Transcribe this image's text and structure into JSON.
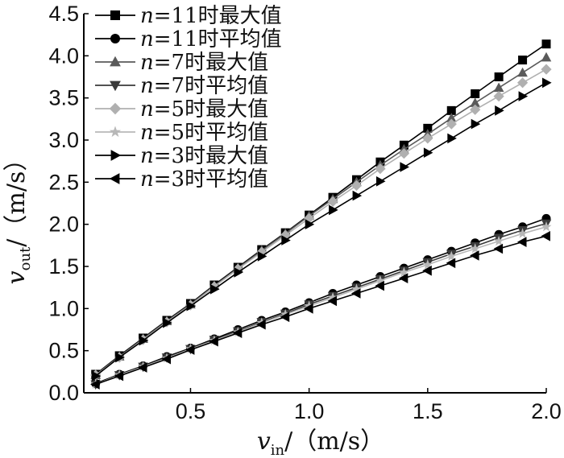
{
  "chart_data": {
    "type": "line",
    "xlabel": {
      "var": "v",
      "sub": "in",
      "unit": "/（m/s）"
    },
    "ylabel": {
      "var": "v",
      "sub": "out",
      "unit": "/（m/s）"
    },
    "xlim": [
      0.05,
      2.0
    ],
    "ylim": [
      0.0,
      4.5
    ],
    "xticks": [
      "0.5",
      "1.0",
      "1.5",
      "2.0"
    ],
    "yticks": [
      "0.0",
      "0.5",
      "1.0",
      "1.5",
      "2.0",
      "2.5",
      "3.0",
      "3.5",
      "4.0",
      "4.5"
    ],
    "grid": false,
    "legend_position": "top-left",
    "x": [
      0.1,
      0.2,
      0.3,
      0.4,
      0.5,
      0.6,
      0.7,
      0.8,
      0.9,
      1.0,
      1.1,
      1.2,
      1.3,
      1.4,
      1.5,
      1.6,
      1.7,
      1.8,
      1.9,
      2.0
    ],
    "series": [
      {
        "name": "n=11时最大值",
        "var": "n",
        "label": "=11时最大值",
        "marker": "square",
        "color": "#000000",
        "values": [
          0.22,
          0.44,
          0.65,
          0.86,
          1.06,
          1.28,
          1.49,
          1.7,
          1.9,
          2.11,
          2.32,
          2.53,
          2.74,
          2.94,
          3.14,
          3.35,
          3.55,
          3.75,
          3.95,
          4.14
        ]
      },
      {
        "name": "n=11时平均值",
        "var": "n",
        "label": "=11时平均值",
        "marker": "circle",
        "color": "#000000",
        "values": [
          0.11,
          0.22,
          0.32,
          0.43,
          0.53,
          0.64,
          0.75,
          0.86,
          0.96,
          1.07,
          1.18,
          1.28,
          1.38,
          1.48,
          1.58,
          1.68,
          1.78,
          1.88,
          1.97,
          2.07
        ]
      },
      {
        "name": "n=7时最大值",
        "var": "n",
        "label": "=7时最大值",
        "marker": "triangle-up",
        "color": "#5a5a5a",
        "values": [
          0.21,
          0.43,
          0.64,
          0.85,
          1.05,
          1.27,
          1.48,
          1.69,
          1.89,
          2.1,
          2.3,
          2.5,
          2.7,
          2.89,
          3.07,
          3.26,
          3.44,
          3.62,
          3.8,
          3.98
        ]
      },
      {
        "name": "n=7时平均值",
        "var": "n",
        "label": "=7时平均值",
        "marker": "triangle-down",
        "color": "#3a3a3a",
        "values": [
          0.1,
          0.21,
          0.31,
          0.42,
          0.52,
          0.63,
          0.73,
          0.84,
          0.94,
          1.05,
          1.15,
          1.25,
          1.35,
          1.45,
          1.55,
          1.65,
          1.74,
          1.84,
          1.93,
          2.01
        ]
      },
      {
        "name": "n=5时最大值",
        "var": "n",
        "label": "=5时最大值",
        "marker": "diamond",
        "color": "#b0b0b0",
        "values": [
          0.21,
          0.42,
          0.63,
          0.84,
          1.04,
          1.26,
          1.47,
          1.67,
          1.87,
          2.07,
          2.27,
          2.46,
          2.66,
          2.84,
          3.02,
          3.19,
          3.36,
          3.52,
          3.68,
          3.84
        ]
      },
      {
        "name": "n=5时平均值",
        "var": "n",
        "label": "=5时平均值",
        "marker": "star",
        "color": "#b8b8b8",
        "values": [
          0.1,
          0.21,
          0.31,
          0.41,
          0.52,
          0.62,
          0.72,
          0.83,
          0.93,
          1.03,
          1.13,
          1.23,
          1.33,
          1.43,
          1.52,
          1.62,
          1.71,
          1.8,
          1.89,
          1.97
        ]
      },
      {
        "name": "n=3时最大值",
        "var": "n",
        "label": "=3时最大值",
        "marker": "triangle-right",
        "color": "#000000",
        "values": [
          0.2,
          0.42,
          0.62,
          0.83,
          1.03,
          1.23,
          1.43,
          1.62,
          1.81,
          2.0,
          2.17,
          2.34,
          2.51,
          2.68,
          2.85,
          3.02,
          3.19,
          3.35,
          3.52,
          3.68
        ]
      },
      {
        "name": "n=3时平均值",
        "var": "n",
        "label": "=3时平均值",
        "marker": "triangle-left",
        "color": "#000000",
        "values": [
          0.1,
          0.2,
          0.3,
          0.4,
          0.51,
          0.61,
          0.71,
          0.81,
          0.9,
          1.0,
          1.09,
          1.18,
          1.27,
          1.36,
          1.45,
          1.54,
          1.63,
          1.71,
          1.79,
          1.86
        ]
      }
    ]
  }
}
